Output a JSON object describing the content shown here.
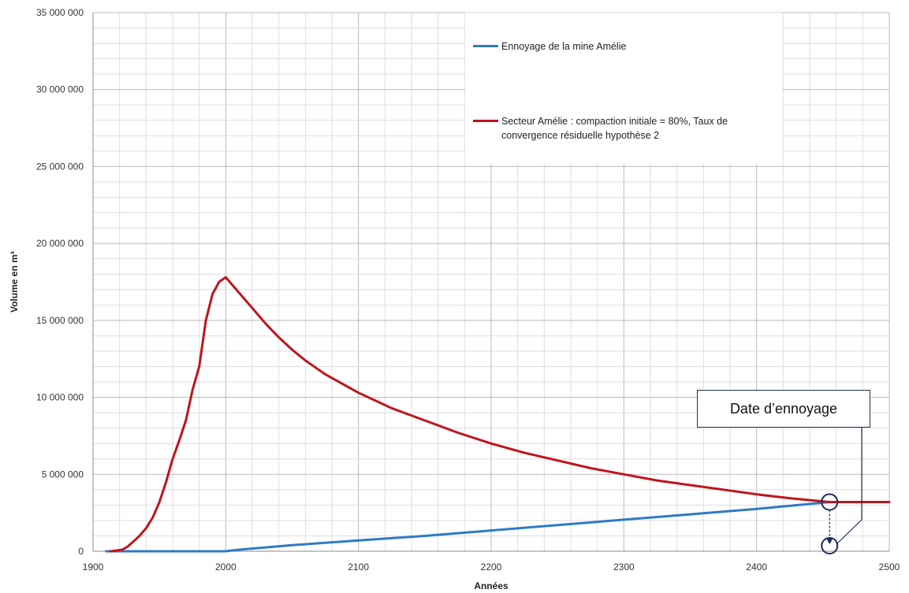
{
  "chart_data": {
    "type": "line",
    "title": "",
    "xlabel": "Années",
    "ylabel": "Volume en m³",
    "xlim": [
      1900,
      2500
    ],
    "ylim": [
      0,
      35000000
    ],
    "x_ticks": [
      1900,
      2000,
      2100,
      2200,
      2300,
      2400,
      2500
    ],
    "x_tick_labels": [
      "1900",
      "2000",
      "2100",
      "2200",
      "2300",
      "2400",
      "2500"
    ],
    "y_ticks": [
      0,
      5000000,
      10000000,
      15000000,
      20000000,
      25000000,
      30000000,
      35000000
    ],
    "y_tick_labels": [
      "0",
      "5 000 000",
      "10 000 000",
      "15 000 000",
      "20 000 000",
      "25 000 000",
      "30 000 000",
      "35 000 000"
    ],
    "grid": true,
    "legend_position": "top-right",
    "series": [
      {
        "name": "Ennoyage de la mine Amélie",
        "color": "#2e7bc4",
        "x": [
          1910,
          2000,
          2010,
          2050,
          2100,
          2150,
          2200,
          2250,
          2300,
          2350,
          2400,
          2455
        ],
        "y": [
          0,
          0,
          100000,
          400000,
          700000,
          1000000,
          1350000,
          1700000,
          2050000,
          2400000,
          2750000,
          3200000
        ]
      },
      {
        "name": "Secteur Amélie : compaction initiale = 80%, Taux de convergence résiduelle hypothèse 2",
        "color": "#c0141c",
        "x": [
          1913,
          1918,
          1922,
          1926,
          1930,
          1935,
          1940,
          1945,
          1950,
          1955,
          1960,
          1965,
          1970,
          1975,
          1980,
          1985,
          1990,
          1995,
          2000,
          2003,
          2010,
          2020,
          2030,
          2040,
          2050,
          2060,
          2075,
          2100,
          2125,
          2150,
          2175,
          2200,
          2225,
          2250,
          2275,
          2300,
          2325,
          2350,
          2375,
          2400,
          2425,
          2455,
          2470,
          2500
        ],
        "y": [
          0,
          50000,
          100000,
          300000,
          600000,
          1000000,
          1500000,
          2200000,
          3200000,
          4500000,
          6000000,
          7200000,
          8500000,
          10500000,
          12000000,
          15000000,
          16700000,
          17500000,
          17800000,
          17500000,
          16800000,
          15800000,
          14800000,
          13900000,
          13100000,
          12400000,
          11500000,
          10300000,
          9300000,
          8500000,
          7700000,
          7000000,
          6400000,
          5900000,
          5400000,
          5000000,
          4600000,
          4300000,
          4000000,
          3700000,
          3450000,
          3200000,
          3200000,
          3200000
        ]
      }
    ],
    "annotations": [
      {
        "text": "Date d’ennoyage",
        "x": 2455,
        "y": 3200000
      }
    ]
  }
}
